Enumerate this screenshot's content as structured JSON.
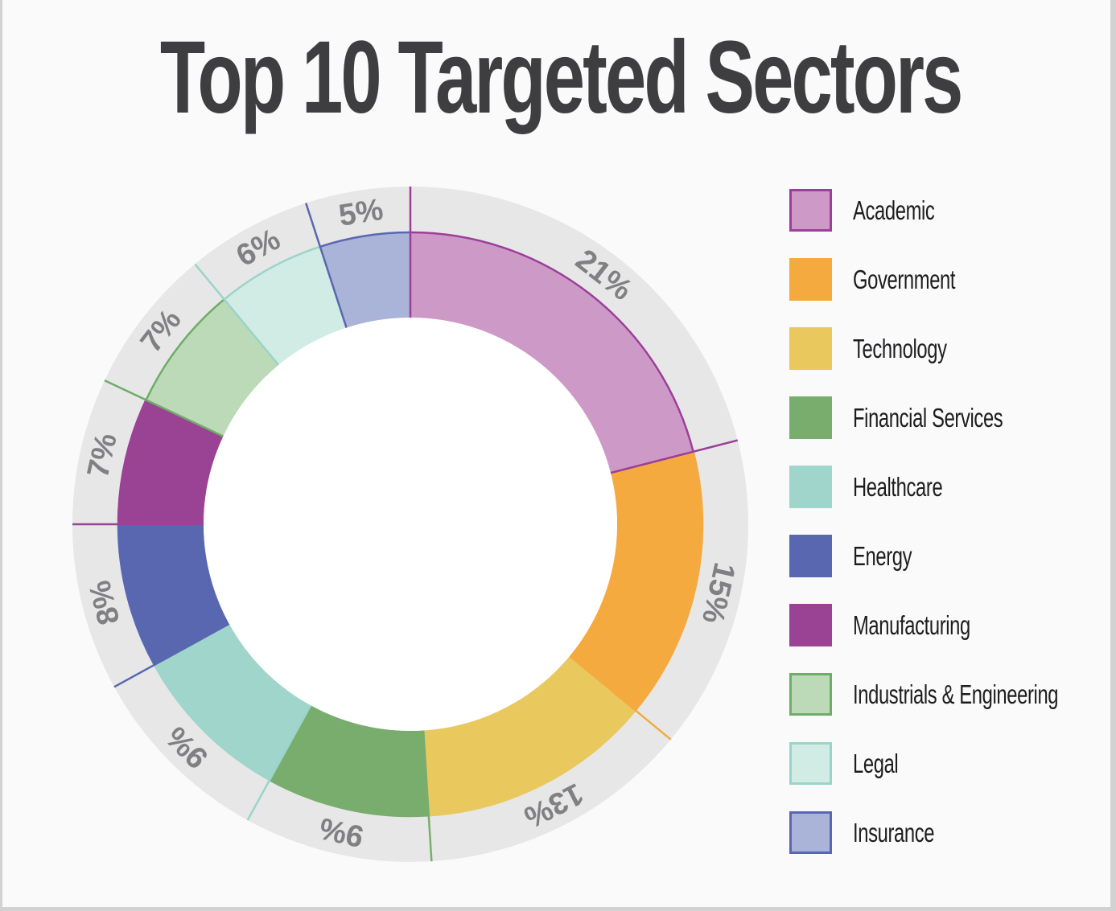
{
  "title": "Top 10 Targeted Sectors",
  "chart_data": {
    "type": "pie",
    "subtype": "donut",
    "title": "Top 10 Targeted Sectors",
    "unit": "%",
    "categories": [
      "Academic",
      "Government",
      "Technology",
      "Financial Services",
      "Healthcare",
      "Energy",
      "Manufacturing",
      "Industrials & Engineering",
      "Legal",
      "Insurance"
    ],
    "values": [
      21,
      15,
      13,
      9,
      9,
      8,
      7,
      7,
      6,
      5
    ],
    "labels": [
      "21%",
      "15%",
      "13%",
      "9%",
      "9%",
      "8%",
      "7%",
      "7%",
      "6%",
      "5%"
    ],
    "fill_colors": [
      "#cd9ac7",
      "#f4aa3f",
      "#e9c85e",
      "#78ad6e",
      "#a0d5cb",
      "#5867b0",
      "#9a4294",
      "#bcd9b8",
      "#d1ebe5",
      "#aab3d8"
    ],
    "stroke_colors": [
      "#9b3f98",
      "#f4aa3f",
      "#e9c85e",
      "#78ad6e",
      "#a0d5cb",
      "#5867b0",
      "#9a4294",
      "#6fac69",
      "#9ad4c9",
      "#5a67b0"
    ],
    "divider_colors": [
      "#9b3f98",
      "#9b3f98",
      "#f4aa3f",
      "#78ad6e",
      "#9ad4c9",
      "#5867b0",
      "#9a4294",
      "#6fac69",
      "#9ad4c9",
      "#5a67b0"
    ],
    "start_angle_deg": 0,
    "direction": "clockwise",
    "legend_position": "right",
    "ring_background": "#e7e7e7",
    "label_color": "#808083"
  },
  "legend": {
    "items": [
      {
        "label": "Academic",
        "fill": "#cd9ac7",
        "border": "#9b3f98"
      },
      {
        "label": "Government",
        "fill": "#f4aa3f",
        "border": "#f4aa3f"
      },
      {
        "label": "Technology",
        "fill": "#e9c85e",
        "border": "#e9c85e"
      },
      {
        "label": "Financial Services",
        "fill": "#78ad6e",
        "border": "#78ad6e"
      },
      {
        "label": "Healthcare",
        "fill": "#a0d5cb",
        "border": "#a0d5cb"
      },
      {
        "label": "Energy",
        "fill": "#5867b0",
        "border": "#5867b0"
      },
      {
        "label": "Manufacturing",
        "fill": "#9a4294",
        "border": "#9a4294"
      },
      {
        "label": "Industrials & Engineering",
        "fill": "#bcd9b8",
        "border": "#6fac69"
      },
      {
        "label": "Legal",
        "fill": "#d1ebe5",
        "border": "#9ad4c9"
      },
      {
        "label": "Insurance",
        "fill": "#aab3d8",
        "border": "#5a67b0"
      }
    ]
  }
}
